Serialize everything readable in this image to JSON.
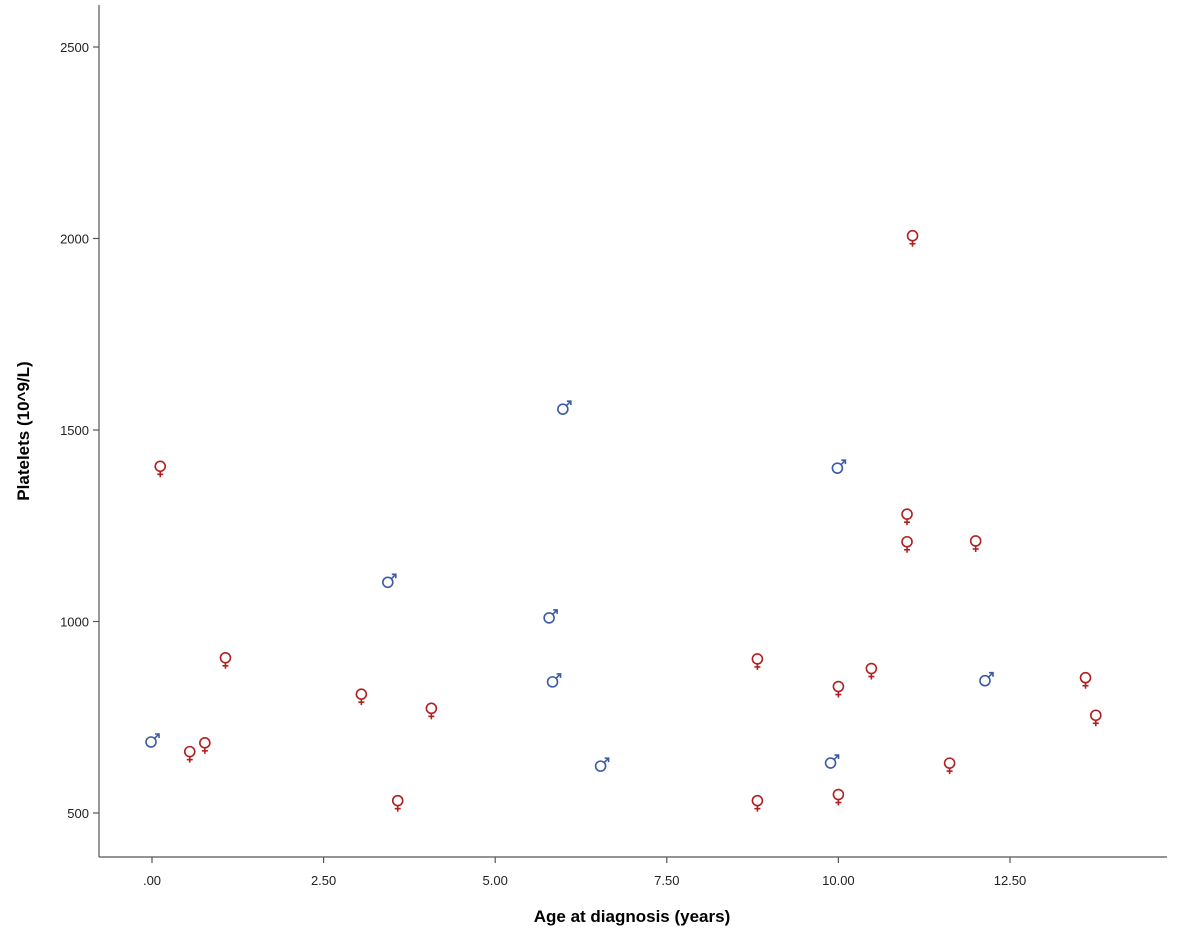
{
  "chart_data": {
    "type": "scatter",
    "xlabel": "Age at diagnosis (years)",
    "ylabel": "Platelets (10^9/L)",
    "xlim": [
      -0.75,
      14.5
    ],
    "ylim": [
      400,
      2600
    ],
    "x_ticks": [
      0,
      2.5,
      5,
      7.5,
      10,
      12.5
    ],
    "x_tick_labels": [
      ".00",
      "2.50",
      "5.00",
      "7.50",
      "10.00",
      "12.50"
    ],
    "y_ticks": [
      500,
      1000,
      1500,
      2000,
      2500
    ],
    "y_tick_labels": [
      "500",
      "1000",
      "1500",
      "2000",
      "2500"
    ],
    "grid": false,
    "series": [
      {
        "marker": "male-symbol",
        "color": "#3b5ba5",
        "points": [
          {
            "x": 0.0,
            "y": 688
          },
          {
            "x": 3.45,
            "y": 1105
          },
          {
            "x": 5.8,
            "y": 1012
          },
          {
            "x": 5.85,
            "y": 845
          },
          {
            "x": 6.0,
            "y": 1557
          },
          {
            "x": 6.55,
            "y": 625
          },
          {
            "x": 9.9,
            "y": 633
          },
          {
            "x": 10.0,
            "y": 1403
          },
          {
            "x": 12.15,
            "y": 848
          }
        ]
      },
      {
        "marker": "female-symbol",
        "color": "#b02020",
        "points": [
          {
            "x": 0.12,
            "y": 1400
          },
          {
            "x": 0.55,
            "y": 655
          },
          {
            "x": 0.77,
            "y": 678
          },
          {
            "x": 1.07,
            "y": 900
          },
          {
            "x": 3.05,
            "y": 805
          },
          {
            "x": 3.58,
            "y": 527
          },
          {
            "x": 4.07,
            "y": 768
          },
          {
            "x": 8.82,
            "y": 897
          },
          {
            "x": 8.82,
            "y": 527
          },
          {
            "x": 10.0,
            "y": 825
          },
          {
            "x": 10.0,
            "y": 543
          },
          {
            "x": 10.48,
            "y": 872
          },
          {
            "x": 11.0,
            "y": 1275
          },
          {
            "x": 11.0,
            "y": 1203
          },
          {
            "x": 11.08,
            "y": 2002
          },
          {
            "x": 11.62,
            "y": 625
          },
          {
            "x": 12.0,
            "y": 1205
          },
          {
            "x": 13.6,
            "y": 848
          },
          {
            "x": 13.75,
            "y": 750
          }
        ]
      }
    ]
  }
}
